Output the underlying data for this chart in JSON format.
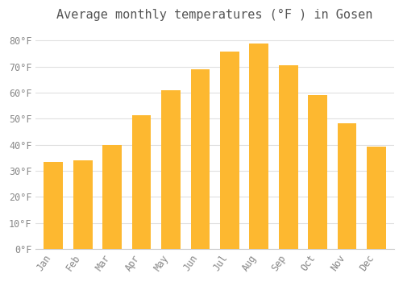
{
  "months": [
    "Jan",
    "Feb",
    "Mar",
    "Apr",
    "May",
    "Jun",
    "Jul",
    "Aug",
    "Sep",
    "Oct",
    "Nov",
    "Dec"
  ],
  "temperatures": [
    33.3,
    34.0,
    39.9,
    51.3,
    61.0,
    68.9,
    75.7,
    79.0,
    70.5,
    59.0,
    48.4,
    39.2
  ],
  "bar_color": "#FDB830",
  "bar_edge_color": "#FDB830",
  "title": "Average monthly temperatures (°F ) in Gosen",
  "title_fontsize": 11,
  "ylabel_ticks": [
    0,
    10,
    20,
    30,
    40,
    50,
    60,
    70,
    80
  ],
  "ylim": [
    0,
    85
  ],
  "plot_bg_color": "#ffffff",
  "fig_bg_color": "#ffffff",
  "grid_color": "#e0e0e0",
  "tick_label_color": "#888888",
  "tick_label_fontsize": 8.5,
  "title_color": "#555555",
  "title_font": "monospace",
  "bar_width": 0.65
}
